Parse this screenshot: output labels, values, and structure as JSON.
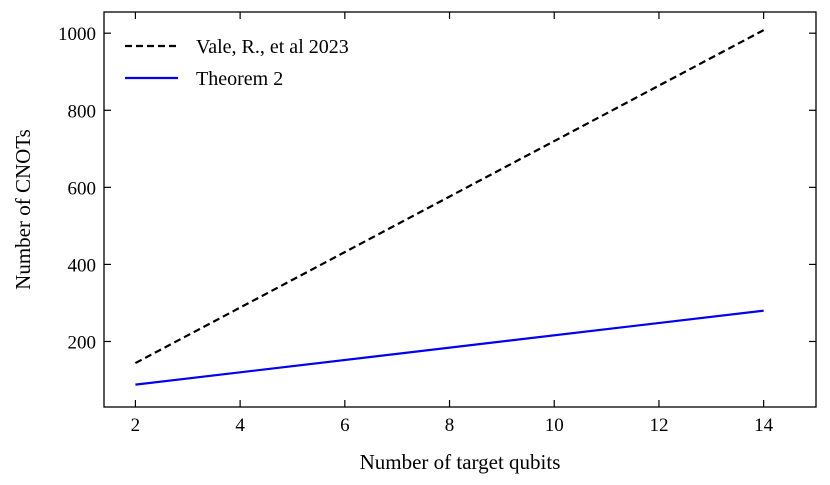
{
  "chart_data": {
    "type": "line",
    "title": "",
    "xlabel": "Number of target qubits",
    "ylabel": "Number of CNOTs",
    "xlim": [
      1.4,
      15.0
    ],
    "ylim": [
      30,
      1055
    ],
    "xticks": [
      2,
      4,
      6,
      8,
      10,
      12,
      14
    ],
    "yticks": [
      200,
      400,
      600,
      800,
      1000
    ],
    "grid": false,
    "legend_position": "top-left",
    "series": [
      {
        "name": "Vale, R., et al 2023",
        "color": "#000000",
        "style": "dashed",
        "x": [
          2,
          14
        ],
        "y": [
          144,
          1008
        ]
      },
      {
        "name": "Theorem 2",
        "color": "#0000ee",
        "style": "solid",
        "x": [
          2,
          14
        ],
        "y": [
          88,
          280
        ]
      }
    ]
  }
}
